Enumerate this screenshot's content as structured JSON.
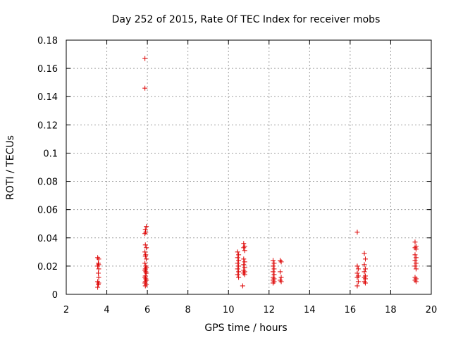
{
  "chart_data": {
    "type": "scatter",
    "title": "Day 252 of 2015, Rate Of TEC Index for receiver mobs",
    "xlabel": "GPS time / hours",
    "ylabel": "ROTI / TECUs",
    "xlim": [
      2,
      20
    ],
    "ylim": [
      0,
      0.18
    ],
    "xticks": [
      2,
      4,
      6,
      8,
      10,
      12,
      14,
      16,
      18,
      20
    ],
    "yticks": [
      0,
      0.02,
      0.04,
      0.06,
      0.08,
      0.1,
      0.12,
      0.14,
      0.16,
      0.18
    ],
    "xtick_labels": [
      "2",
      "4",
      "6",
      "8",
      "10",
      "12",
      "14",
      "16",
      "18",
      "20"
    ],
    "ytick_labels": [
      "0",
      "0.02",
      "0.04",
      "0.06",
      "0.08",
      "0.1",
      "0.12",
      "0.14",
      "0.16",
      "0.18"
    ],
    "grid": true,
    "marker": "+",
    "color": "#dd0000",
    "series": [
      {
        "points": [
          [
            3.55,
            0.026
          ],
          [
            3.6,
            0.025
          ],
          [
            3.58,
            0.022
          ],
          [
            3.6,
            0.021
          ],
          [
            3.55,
            0.02
          ],
          [
            3.6,
            0.018
          ],
          [
            3.58,
            0.015
          ],
          [
            3.6,
            0.012
          ],
          [
            3.55,
            0.009
          ],
          [
            3.6,
            0.008
          ],
          [
            3.58,
            0.007
          ],
          [
            3.55,
            0.005
          ],
          [
            5.88,
            0.167
          ],
          [
            5.88,
            0.146
          ],
          [
            5.95,
            0.048
          ],
          [
            5.9,
            0.046
          ],
          [
            5.92,
            0.044
          ],
          [
            5.88,
            0.043
          ],
          [
            5.9,
            0.035
          ],
          [
            5.95,
            0.033
          ],
          [
            5.88,
            0.03
          ],
          [
            5.92,
            0.028
          ],
          [
            5.9,
            0.027
          ],
          [
            5.95,
            0.025
          ],
          [
            5.88,
            0.022
          ],
          [
            5.92,
            0.02
          ],
          [
            5.95,
            0.019
          ],
          [
            5.9,
            0.018
          ],
          [
            5.88,
            0.017
          ],
          [
            5.92,
            0.016
          ],
          [
            5.95,
            0.015
          ],
          [
            5.9,
            0.013
          ],
          [
            5.88,
            0.012
          ],
          [
            5.92,
            0.011
          ],
          [
            5.95,
            0.01
          ],
          [
            5.9,
            0.009
          ],
          [
            5.88,
            0.008
          ],
          [
            5.95,
            0.007
          ],
          [
            5.9,
            0.006
          ],
          [
            10.45,
            0.03
          ],
          [
            10.5,
            0.028
          ],
          [
            10.45,
            0.026
          ],
          [
            10.5,
            0.024
          ],
          [
            10.45,
            0.022
          ],
          [
            10.5,
            0.02
          ],
          [
            10.45,
            0.018
          ],
          [
            10.5,
            0.016
          ],
          [
            10.45,
            0.014
          ],
          [
            10.5,
            0.012
          ],
          [
            10.75,
            0.036
          ],
          [
            10.8,
            0.034
          ],
          [
            10.75,
            0.033
          ],
          [
            10.8,
            0.031
          ],
          [
            10.75,
            0.025
          ],
          [
            10.8,
            0.023
          ],
          [
            10.75,
            0.021
          ],
          [
            10.8,
            0.019
          ],
          [
            10.75,
            0.017
          ],
          [
            10.8,
            0.016
          ],
          [
            10.75,
            0.015
          ],
          [
            10.8,
            0.014
          ],
          [
            10.7,
            0.006
          ],
          [
            12.2,
            0.024
          ],
          [
            12.25,
            0.022
          ],
          [
            12.2,
            0.02
          ],
          [
            12.25,
            0.018
          ],
          [
            12.2,
            0.016
          ],
          [
            12.25,
            0.014
          ],
          [
            12.2,
            0.012
          ],
          [
            12.25,
            0.011
          ],
          [
            12.2,
            0.01
          ],
          [
            12.25,
            0.009
          ],
          [
            12.2,
            0.008
          ],
          [
            12.55,
            0.024
          ],
          [
            12.6,
            0.023
          ],
          [
            12.55,
            0.016
          ],
          [
            12.6,
            0.012
          ],
          [
            12.55,
            0.01
          ],
          [
            12.6,
            0.009
          ],
          [
            16.35,
            0.044
          ],
          [
            16.35,
            0.02
          ],
          [
            16.4,
            0.018
          ],
          [
            16.35,
            0.015
          ],
          [
            16.4,
            0.013
          ],
          [
            16.35,
            0.012
          ],
          [
            16.4,
            0.009
          ],
          [
            16.35,
            0.006
          ],
          [
            16.7,
            0.029
          ],
          [
            16.75,
            0.025
          ],
          [
            16.7,
            0.021
          ],
          [
            16.75,
            0.018
          ],
          [
            16.7,
            0.016
          ],
          [
            16.75,
            0.013
          ],
          [
            16.7,
            0.012
          ],
          [
            16.75,
            0.011
          ],
          [
            16.7,
            0.009
          ],
          [
            16.75,
            0.008
          ],
          [
            19.2,
            0.037
          ],
          [
            19.25,
            0.034
          ],
          [
            19.2,
            0.033
          ],
          [
            19.25,
            0.032
          ],
          [
            19.2,
            0.028
          ],
          [
            19.25,
            0.026
          ],
          [
            19.2,
            0.024
          ],
          [
            19.25,
            0.022
          ],
          [
            19.2,
            0.02
          ],
          [
            19.25,
            0.018
          ],
          [
            19.2,
            0.012
          ],
          [
            19.25,
            0.011
          ],
          [
            19.2,
            0.01
          ],
          [
            19.25,
            0.009
          ]
        ]
      }
    ]
  }
}
